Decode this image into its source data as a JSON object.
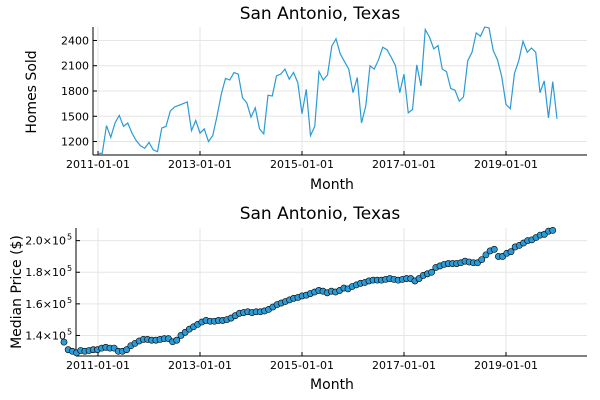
{
  "chart_data": [
    {
      "type": "line",
      "title": "San Antonio, Texas",
      "xlabel": "Month",
      "ylabel": "Homes Sold",
      "x_ticks": [
        "2011-01-01",
        "2013-01-01",
        "2015-01-01",
        "2017-01-01",
        "2019-01-01"
      ],
      "y_ticks": [
        "1200",
        "1500",
        "1800",
        "2100",
        "2400"
      ],
      "y_tick_values": [
        1200,
        1500,
        1800,
        2100,
        2400
      ],
      "ylim": [
        1040,
        2560
      ],
      "x_start": "2011-01-01",
      "legend": "none",
      "grid": true,
      "color": "#2a9bd6",
      "series": [
        {
          "values": [
            1060,
            1060,
            1390,
            1250,
            1420,
            1510,
            1380,
            1420,
            1300,
            1210,
            1150,
            1120,
            1190,
            1100,
            1080,
            1360,
            1380,
            1560,
            1610,
            1630,
            1650,
            1670,
            1330,
            1450,
            1300,
            1350,
            1200,
            1270,
            1500,
            1760,
            1950,
            1930,
            2020,
            2000,
            1720,
            1660,
            1490,
            1600,
            1350,
            1290,
            1750,
            1740,
            1980,
            2000,
            2060,
            1940,
            2020,
            1900,
            1530,
            1820,
            1270,
            1380,
            2030,
            1930,
            1990,
            2330,
            2420,
            2240,
            2150,
            2060,
            1780,
            1960,
            1420,
            1620,
            2100,
            2060,
            2170,
            2320,
            2290,
            2200,
            2100,
            1780,
            2000,
            1540,
            1580,
            2110,
            1860,
            2530,
            2440,
            2300,
            2340,
            2060,
            2030,
            1830,
            1810,
            1680,
            1730,
            2160,
            2260,
            2490,
            2450,
            2560,
            2550,
            2280,
            2170,
            1970,
            1640,
            1590,
            2010,
            2160,
            2390,
            2260,
            2310,
            2260,
            1780,
            1920,
            1480,
            1910,
            1470
          ]
        }
      ]
    },
    {
      "type": "scatter",
      "title": "San Antonio, Texas",
      "xlabel": "Month",
      "ylabel": "Median Price ($)",
      "x_ticks": [
        "2011-01-01",
        "2013-01-01",
        "2015-01-01",
        "2017-01-01",
        "2019-01-01"
      ],
      "y_ticks": [
        {
          "mantissa": "1.4×10",
          "exp": "5"
        },
        {
          "mantissa": "1.6×10",
          "exp": "5"
        },
        {
          "mantissa": "1.8×10",
          "exp": "5"
        },
        {
          "mantissa": "2.0×10",
          "exp": "5"
        }
      ],
      "y_tick_values": [
        140000,
        160000,
        180000,
        200000
      ],
      "ylim": [
        127000,
        208000
      ],
      "x_start": "2011-01-01",
      "legend": "none",
      "grid": true,
      "color": "#2a9bd6",
      "series": [
        {
          "values": [
            135800,
            131000,
            130000,
            129000,
            130500,
            130000,
            130500,
            131000,
            131000,
            132000,
            132500,
            132000,
            132000,
            130000,
            130000,
            131000,
            133500,
            135000,
            136500,
            137500,
            137500,
            137000,
            137000,
            137500,
            138000,
            138000,
            136000,
            137000,
            140000,
            142000,
            144000,
            145500,
            147000,
            148500,
            149500,
            149000,
            149000,
            149500,
            149500,
            150000,
            151000,
            152500,
            154000,
            154500,
            155000,
            154500,
            155000,
            155000,
            155500,
            156500,
            158000,
            159500,
            160500,
            161500,
            162500,
            163500,
            164000,
            165000,
            165500,
            166500,
            167500,
            168500,
            168000,
            167000,
            168000,
            167500,
            168500,
            170000,
            169500,
            171000,
            172000,
            173000,
            173500,
            174500,
            175000,
            175000,
            175000,
            175500,
            176000,
            175500,
            175000,
            175500,
            176000,
            176000,
            174500,
            176000,
            178000,
            179000,
            180000,
            183000,
            184000,
            185000,
            185500,
            185500,
            185500,
            186000,
            187000,
            186500,
            186000,
            186000,
            188000,
            191000,
            193500,
            194500,
            190000,
            190000,
            192000,
            193000,
            196000,
            197000,
            198500,
            200000,
            200500,
            202000,
            203500,
            204000,
            206000,
            206500
          ]
        }
      ]
    }
  ]
}
